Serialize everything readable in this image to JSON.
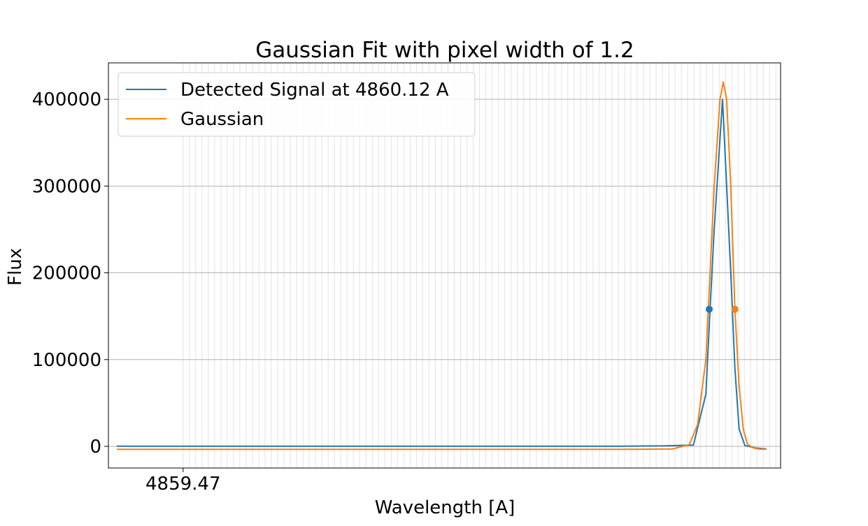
{
  "chart_data": {
    "type": "line",
    "title": "Gaussian Fit with pixel width of 1.2",
    "xlabel": "Wavelength [A]",
    "ylabel": "Flux",
    "xlim": [
      4859.38,
      4860.19
    ],
    "ylim": [
      -25000,
      442000
    ],
    "x_tick_labels": [
      {
        "value": 4859.47,
        "label": "4859.47"
      }
    ],
    "y_ticks": [
      0,
      100000,
      200000,
      300000,
      400000
    ],
    "y_tick_labels": [
      "0",
      "100000",
      "200000",
      "300000",
      "400000"
    ],
    "grid": true,
    "legend_position": "top-left",
    "series": [
      {
        "name": "Detected Signal at 4860.12 A",
        "color": "#1f77b4",
        "x": [
          4859.39,
          4859.6,
          4859.8,
          4860.0,
          4860.05,
          4860.085,
          4860.1,
          4860.105,
          4860.11,
          4860.12,
          4860.125,
          4860.13,
          4860.135,
          4860.14,
          4860.147,
          4860.16,
          4860.173
        ],
        "y": [
          200,
          200,
          200,
          200,
          500,
          1500,
          60000,
          158000,
          250000,
          400000,
          300000,
          200000,
          90000,
          20000,
          1000,
          -2000,
          -3000
        ]
      },
      {
        "name": "Gaussian",
        "color": "#ff7f0e",
        "x": [
          4859.39,
          4859.6,
          4859.8,
          4860.0,
          4860.06,
          4860.08,
          4860.09,
          4860.1,
          4860.105,
          4860.11,
          4860.117,
          4860.121,
          4860.125,
          4860.13,
          4860.135,
          4860.14,
          4860.145,
          4860.15,
          4860.155,
          4860.16,
          4860.165,
          4860.173
        ],
        "y": [
          -3500,
          -3500,
          -3500,
          -3500,
          -3000,
          2000,
          25000,
          100000,
          200000,
          300000,
          400000,
          420000,
          400000,
          300000,
          158000,
          70000,
          20000,
          3000,
          -1000,
          -2500,
          -3200,
          -3500
        ]
      }
    ],
    "markers": [
      {
        "series": "Detected Signal at 4860.12 A",
        "x": 4860.104,
        "y": 158000,
        "color": "#1f77b4"
      },
      {
        "series": "Gaussian",
        "x": 4860.135,
        "y": 158000,
        "color": "#ff7f0e"
      }
    ]
  }
}
